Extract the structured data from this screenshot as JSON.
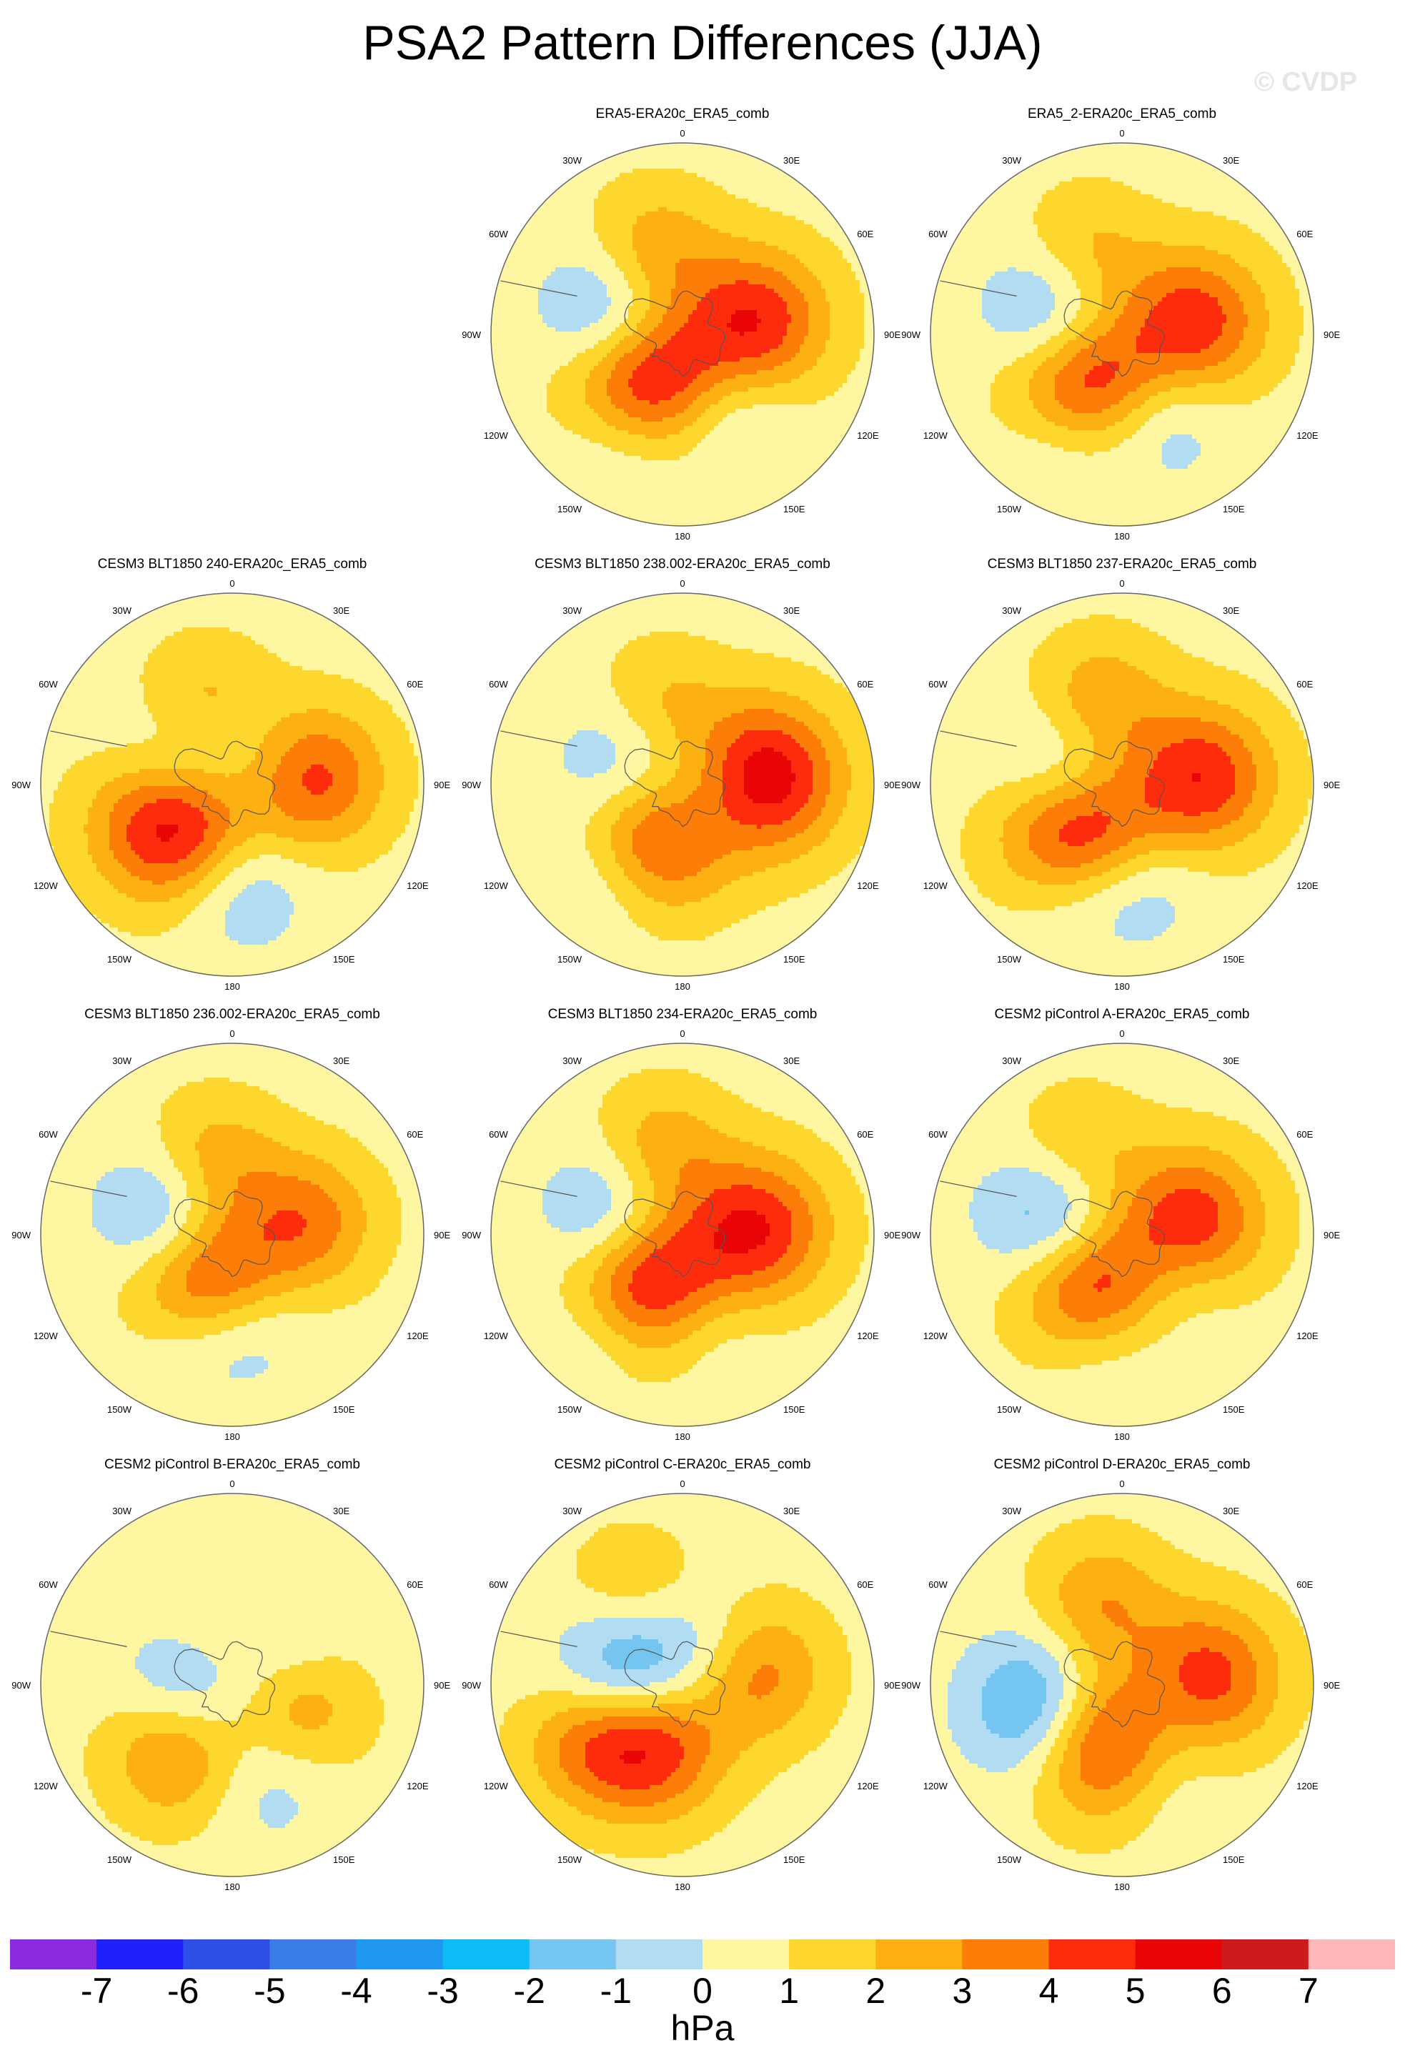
{
  "figure": {
    "title": "PSA2 Pattern Differences (JJA)",
    "watermark": "© CVDP",
    "colorbar_unit": "hPa"
  },
  "colors": {
    "levels": [
      -7,
      -6,
      -5,
      -4,
      -3,
      -2,
      -1,
      0,
      1,
      2,
      3,
      4,
      5,
      6,
      7
    ],
    "palette": [
      "#8a2be2",
      "#1f1ffc",
      "#2d4fe6",
      "#3b7de8",
      "#1e98f0",
      "#0bbcf5",
      "#74c6f1",
      "#b2dcf2",
      "#fff6a2",
      "#fed72e",
      "#fdb012",
      "#fd7d09",
      "#fd2c0c",
      "#e90505",
      "#cd1b1b",
      "#fdb7b8"
    ],
    "coast": "#555555",
    "ring": "#666666"
  },
  "chart_data": [
    {
      "type": "contour_map",
      "title": "ERA5-ERA20c_ERA5_comb",
      "lon_labels": [
        "0",
        "30E",
        "60E",
        "90E",
        "120E",
        "150E",
        "180",
        "150W",
        "120W",
        "90W",
        "60W",
        "30W"
      ],
      "background": 0.6,
      "anomalies": [
        {
          "lon": -140,
          "lat": -62,
          "amp": 5.5
        },
        {
          "lon": -75,
          "lat": -56,
          "amp": -3.2
        },
        {
          "lon": 80,
          "lat": -55,
          "amp": 4.2
        },
        {
          "lon": -20,
          "lat": -50,
          "amp": 2.4
        },
        {
          "lon": 150,
          "lat": -45,
          "amp": -1.4
        },
        {
          "lon": -150,
          "lat": -35,
          "amp": -1.6
        }
      ]
    },
    {
      "type": "contour_map",
      "title": "ERA5_2-ERA20c_ERA5_comb",
      "lon_labels": [
        "0",
        "30E",
        "60E",
        "90E",
        "120E",
        "150E",
        "180",
        "150W",
        "120W",
        "90W",
        "60W",
        "30W"
      ],
      "background": 0.6,
      "anomalies": [
        {
          "lon": -140,
          "lat": -62,
          "amp": 5.2
        },
        {
          "lon": -75,
          "lat": -58,
          "amp": -3.3
        },
        {
          "lon": 80,
          "lat": -55,
          "amp": 4.0
        },
        {
          "lon": -25,
          "lat": -50,
          "amp": 2.0
        },
        {
          "lon": 155,
          "lat": -45,
          "amp": -1.6
        },
        {
          "lon": -150,
          "lat": -35,
          "amp": -1.5
        }
      ]
    },
    {
      "type": "contour_map",
      "title": "CESM3 BLT1850 240-ERA20c_ERA5_comb",
      "lon_labels": [
        "0",
        "30E",
        "60E",
        "90E",
        "120E",
        "150E",
        "180",
        "150W",
        "120W",
        "90W",
        "60W",
        "30W"
      ],
      "background": 0.6,
      "anomalies": [
        {
          "lon": -120,
          "lat": -58,
          "amp": 6.0
        },
        {
          "lon": -70,
          "lat": -62,
          "amp": -3.0
        },
        {
          "lon": 85,
          "lat": -52,
          "amp": 3.8
        },
        {
          "lon": -20,
          "lat": -52,
          "amp": 2.2
        },
        {
          "lon": 175,
          "lat": -42,
          "amp": -1.8
        },
        {
          "lon": 30,
          "lat": -75,
          "amp": -1.3
        }
      ]
    },
    {
      "type": "contour_map",
      "title": "CESM3 BLT1850 238.002-ERA20c_ERA5_comb",
      "lon_labels": [
        "0",
        "30E",
        "60E",
        "90E",
        "120E",
        "150E",
        "180",
        "150W",
        "120W",
        "90W",
        "60W",
        "30W"
      ],
      "background": 0.6,
      "anomalies": [
        {
          "lon": -150,
          "lat": -62,
          "amp": 5.0
        },
        {
          "lon": -75,
          "lat": -60,
          "amp": -2.2
        },
        {
          "lon": 85,
          "lat": -52,
          "amp": 5.4
        },
        {
          "lon": -15,
          "lat": -52,
          "amp": 1.6
        },
        {
          "lon": -140,
          "lat": -38,
          "amp": -1.8
        },
        {
          "lon": 120,
          "lat": -80,
          "amp": -2.0
        }
      ]
    },
    {
      "type": "contour_map",
      "title": "CESM3 BLT1850 237-ERA20c_ERA5_comb",
      "lon_labels": [
        "0",
        "30E",
        "60E",
        "90E",
        "120E",
        "150E",
        "180",
        "150W",
        "120W",
        "90W",
        "60W",
        "30W"
      ],
      "background": 0.6,
      "anomalies": [
        {
          "lon": -140,
          "lat": -58,
          "amp": 5.6
        },
        {
          "lon": -75,
          "lat": -62,
          "amp": -2.3
        },
        {
          "lon": 85,
          "lat": -52,
          "amp": 4.2
        },
        {
          "lon": -15,
          "lat": -50,
          "amp": 2.3
        },
        {
          "lon": -155,
          "lat": -38,
          "amp": -1.8
        },
        {
          "lon": 170,
          "lat": -42,
          "amp": -1.6
        }
      ]
    },
    {
      "type": "contour_map",
      "title": "CESM3 BLT1850 236.002-ERA20c_ERA5_comb",
      "lon_labels": [
        "0",
        "30E",
        "60E",
        "90E",
        "120E",
        "150E",
        "180",
        "150W",
        "120W",
        "90W",
        "60W",
        "30W"
      ],
      "background": 0.6,
      "anomalies": [
        {
          "lon": -150,
          "lat": -65,
          "amp": 4.5
        },
        {
          "lon": -75,
          "lat": -58,
          "amp": -2.8
        },
        {
          "lon": 80,
          "lat": -55,
          "amp": 3.0
        },
        {
          "lon": -15,
          "lat": -55,
          "amp": 2.2
        },
        {
          "lon": 170,
          "lat": -45,
          "amp": -1.4
        },
        {
          "lon": -160,
          "lat": -40,
          "amp": -1.2
        }
      ]
    },
    {
      "type": "contour_map",
      "title": "CESM3 BLT1850 234-ERA20c_ERA5_comb",
      "lon_labels": [
        "0",
        "30E",
        "60E",
        "90E",
        "120E",
        "150E",
        "180",
        "150W",
        "120W",
        "90W",
        "60W",
        "30W"
      ],
      "background": 0.6,
      "anomalies": [
        {
          "lon": -145,
          "lat": -60,
          "amp": 5.8
        },
        {
          "lon": -75,
          "lat": -56,
          "amp": -2.8
        },
        {
          "lon": 85,
          "lat": -55,
          "amp": 4.3
        },
        {
          "lon": -15,
          "lat": -50,
          "amp": 2.2
        },
        {
          "lon": -140,
          "lat": -35,
          "amp": -1.8
        },
        {
          "lon": 170,
          "lat": -48,
          "amp": -1.3
        }
      ]
    },
    {
      "type": "contour_map",
      "title": "CESM2 piControl A-ERA20c_ERA5_comb",
      "lon_labels": [
        "0",
        "30E",
        "60E",
        "90E",
        "120E",
        "150E",
        "180",
        "150W",
        "120W",
        "90W",
        "60W",
        "30W"
      ],
      "background": 0.6,
      "anomalies": [
        {
          "lon": -150,
          "lat": -63,
          "amp": 5.0
        },
        {
          "lon": -75,
          "lat": -58,
          "amp": -3.6
        },
        {
          "lon": 80,
          "lat": -57,
          "amp": 4.3
        },
        {
          "lon": -30,
          "lat": -48,
          "amp": 2.0
        },
        {
          "lon": 130,
          "lat": -60,
          "amp": -1.5
        },
        {
          "lon": -170,
          "lat": -40,
          "amp": -1.3
        }
      ]
    },
    {
      "type": "contour_map",
      "title": "CESM2 piControl B-ERA20c_ERA5_comb",
      "lon_labels": [
        "0",
        "30E",
        "60E",
        "90E",
        "120E",
        "150E",
        "180",
        "150W",
        "120W",
        "90W",
        "60W",
        "30W"
      ],
      "background": 0.6,
      "anomalies": [
        {
          "lon": -140,
          "lat": -48,
          "amp": 2.8
        },
        {
          "lon": -85,
          "lat": -70,
          "amp": -2.4
        },
        {
          "lon": 110,
          "lat": -55,
          "amp": 2.0
        },
        {
          "lon": -15,
          "lat": -68,
          "amp": 1.5
        },
        {
          "lon": 40,
          "lat": -60,
          "amp": -1.3
        },
        {
          "lon": 160,
          "lat": -40,
          "amp": -1.2
        }
      ]
    },
    {
      "type": "contour_map",
      "title": "CESM2 piControl C-ERA20c_ERA5_comb",
      "lon_labels": [
        "0",
        "30E",
        "60E",
        "90E",
        "120E",
        "150E",
        "180",
        "150W",
        "120W",
        "90W",
        "60W",
        "30W"
      ],
      "background": 0.6,
      "anomalies": [
        {
          "lon": -150,
          "lat": -58,
          "amp": 4.5
        },
        {
          "lon": -70,
          "lat": -64,
          "amp": -3.8
        },
        {
          "lon": 80,
          "lat": -55,
          "amp": 3.0
        },
        {
          "lon": -30,
          "lat": -42,
          "amp": 1.8
        },
        {
          "lon": -120,
          "lat": -35,
          "amp": 2.0
        },
        {
          "lon": 40,
          "lat": -70,
          "amp": -1.2
        }
      ]
    },
    {
      "type": "contour_map",
      "title": "CESM2 piControl D-ERA20c_ERA5_comb",
      "lon_labels": [
        "0",
        "30E",
        "60E",
        "90E",
        "120E",
        "150E",
        "180",
        "150W",
        "120W",
        "90W",
        "60W",
        "30W"
      ],
      "background": 0.6,
      "anomalies": [
        {
          "lon": -165,
          "lat": -63,
          "amp": 5.4
        },
        {
          "lon": -105,
          "lat": -50,
          "amp": -3.8
        },
        {
          "lon": 85,
          "lat": -50,
          "amp": 4.1
        },
        {
          "lon": -15,
          "lat": -50,
          "amp": 2.3
        },
        {
          "lon": 120,
          "lat": -70,
          "amp": -1.6
        },
        {
          "lon": 160,
          "lat": -45,
          "amp": -1.3
        }
      ]
    }
  ]
}
